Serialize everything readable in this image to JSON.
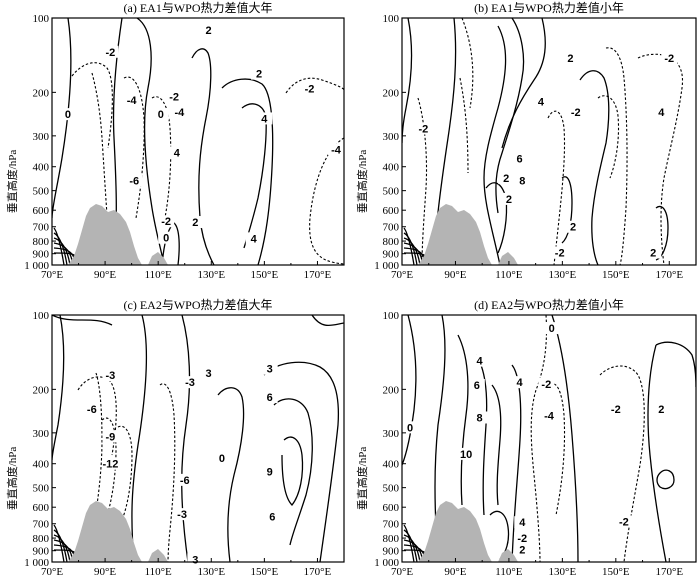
{
  "figure": {
    "ylabel": "垂直高度/hPa",
    "x_ticks": [
      "70°E",
      "90°E",
      "110°E",
      "130°E",
      "150°E",
      "170°E"
    ],
    "y_ticks": [
      "100",
      "200",
      "300",
      "400",
      "500",
      "600",
      "700",
      "800",
      "900",
      "1 000"
    ]
  },
  "chart_data": [
    {
      "type": "contour",
      "title": "(a) EA1与WPO热力差值大年",
      "xlim": [
        70,
        180
      ],
      "ylim": [
        1000,
        100
      ],
      "ylog": true,
      "contour_labels": [
        {
          "lon": 92,
          "p": 137,
          "text": "-2"
        },
        {
          "lon": 129,
          "p": 112,
          "text": "2"
        },
        {
          "lon": 76,
          "p": 245,
          "text": "0"
        },
        {
          "lon": 100,
          "p": 215,
          "text": "-4"
        },
        {
          "lon": 116,
          "p": 208,
          "text": "-2"
        },
        {
          "lon": 111,
          "p": 245,
          "text": "0"
        },
        {
          "lon": 118,
          "p": 240,
          "text": "-4"
        },
        {
          "lon": 117,
          "p": 350,
          "text": "4"
        },
        {
          "lon": 148,
          "p": 168,
          "text": "2"
        },
        {
          "lon": 150,
          "p": 255,
          "text": "4"
        },
        {
          "lon": 167,
          "p": 193,
          "text": "-2"
        },
        {
          "lon": 177,
          "p": 340,
          "text": "-4"
        },
        {
          "lon": 101,
          "p": 455,
          "text": "-6"
        },
        {
          "lon": 113,
          "p": 665,
          "text": "-2"
        },
        {
          "lon": 124,
          "p": 670,
          "text": "2"
        },
        {
          "lon": 113,
          "p": 775,
          "text": "0"
        },
        {
          "lon": 146,
          "p": 780,
          "text": "4"
        }
      ],
      "terrain": "Tibetan Plateau (grey)"
    },
    {
      "type": "contour",
      "title": "(b) EA1与WPO热力差值小年",
      "xlim": [
        70,
        180
      ],
      "ylim": [
        1000,
        100
      ],
      "ylog": true,
      "contour_labels": [
        {
          "lon": 133,
          "p": 145,
          "text": "2"
        },
        {
          "lon": 170,
          "p": 145,
          "text": "-2"
        },
        {
          "lon": 122,
          "p": 218,
          "text": "4"
        },
        {
          "lon": 135,
          "p": 240,
          "text": "-2"
        },
        {
          "lon": 167,
          "p": 240,
          "text": "4"
        },
        {
          "lon": 78,
          "p": 280,
          "text": "-2"
        },
        {
          "lon": 114,
          "p": 370,
          "text": "6"
        },
        {
          "lon": 109,
          "p": 445,
          "text": "2"
        },
        {
          "lon": 115,
          "p": 455,
          "text": "8"
        },
        {
          "lon": 110,
          "p": 540,
          "text": "2"
        },
        {
          "lon": 134,
          "p": 700,
          "text": "2"
        },
        {
          "lon": 129,
          "p": 890,
          "text": "-2"
        },
        {
          "lon": 164,
          "p": 890,
          "text": "2"
        }
      ],
      "terrain": "Tibetan Plateau (grey)"
    },
    {
      "type": "contour",
      "title": "(c) EA2与WPO热力差值大年",
      "xlim": [
        70,
        180
      ],
      "ylim": [
        1000,
        100
      ],
      "ylog": true,
      "contour_labels": [
        {
          "lon": 92,
          "p": 175,
          "text": "-3"
        },
        {
          "lon": 122,
          "p": 187,
          "text": "-3"
        },
        {
          "lon": 129,
          "p": 172,
          "text": "3"
        },
        {
          "lon": 152,
          "p": 165,
          "text": "3"
        },
        {
          "lon": 85,
          "p": 240,
          "text": "-6"
        },
        {
          "lon": 152,
          "p": 215,
          "text": "6"
        },
        {
          "lon": 92,
          "p": 310,
          "text": "-9"
        },
        {
          "lon": 92,
          "p": 400,
          "text": "-12"
        },
        {
          "lon": 134,
          "p": 380,
          "text": "0"
        },
        {
          "lon": 120,
          "p": 465,
          "text": "-6"
        },
        {
          "lon": 152,
          "p": 430,
          "text": "9"
        },
        {
          "lon": 119,
          "p": 640,
          "text": "-3"
        },
        {
          "lon": 153,
          "p": 655,
          "text": "6"
        },
        {
          "lon": 124,
          "p": 975,
          "text": "3"
        }
      ],
      "terrain": "Tibetan Plateau (grey)"
    },
    {
      "type": "contour",
      "title": "(d) EA2与WPO热力差值小年",
      "xlim": [
        70,
        180
      ],
      "ylim": [
        1000,
        100
      ],
      "ylog": true,
      "contour_labels": [
        {
          "lon": 126,
          "p": 113,
          "text": "0"
        },
        {
          "lon": 99,
          "p": 153,
          "text": "4"
        },
        {
          "lon": 98,
          "p": 192,
          "text": "6"
        },
        {
          "lon": 114,
          "p": 187,
          "text": "4"
        },
        {
          "lon": 124,
          "p": 190,
          "text": "-2"
        },
        {
          "lon": 99,
          "p": 260,
          "text": "8"
        },
        {
          "lon": 125,
          "p": 255,
          "text": "-4"
        },
        {
          "lon": 150,
          "p": 240,
          "text": "-2"
        },
        {
          "lon": 167,
          "p": 240,
          "text": "2"
        },
        {
          "lon": 73,
          "p": 285,
          "text": "0"
        },
        {
          "lon": 94,
          "p": 365,
          "text": "10"
        },
        {
          "lon": 115,
          "p": 690,
          "text": "4"
        },
        {
          "lon": 153,
          "p": 685,
          "text": "-2"
        },
        {
          "lon": 115,
          "p": 800,
          "text": "-2"
        },
        {
          "lon": 115,
          "p": 890,
          "text": "2"
        }
      ],
      "terrain": "Tibetan Plateau (grey)"
    }
  ]
}
